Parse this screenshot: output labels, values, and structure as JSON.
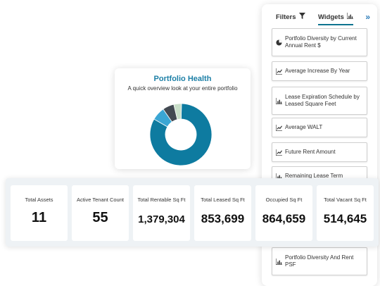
{
  "panel": {
    "tabs": {
      "filters": "Filters",
      "widgets": "Widgets"
    },
    "expand_icon": "chevron-double-right-icon",
    "widgets": [
      {
        "label": "Portfolio Diversity by Current Annual Rent $",
        "icon": "pie-chart-icon"
      },
      {
        "label": "Average Increase By Year",
        "icon": "line-chart-icon"
      },
      {
        "label": "Lease Expiration Schedule by Leased Square Feet",
        "icon": "bar-chart-icon"
      },
      {
        "label": "Average WALT",
        "icon": "line-chart-icon"
      },
      {
        "label": "Future Rent Amount",
        "icon": "line-chart-icon"
      },
      {
        "label": "Remaining Lease Term",
        "icon": "bar-chart-icon"
      },
      {
        "label": "Portfolio Diversity And Rent PSF",
        "icon": "bar-chart-icon"
      }
    ]
  },
  "health": {
    "title": "Portfolio Health",
    "subtitle": "A quick overview look at your entire portfolio",
    "donut_segments": [
      {
        "color": "#0e7ba0",
        "fraction": 0.83
      },
      {
        "color": "#3aa6d4",
        "fraction": 0.07
      },
      {
        "color": "#434a52",
        "fraction": 0.06
      },
      {
        "color": "#c9dfc9",
        "fraction": 0.04
      }
    ]
  },
  "stats": [
    {
      "label": "Total Assets",
      "value": "11"
    },
    {
      "label": "Active Tenant Count",
      "value": "55"
    },
    {
      "label": "Total Rentable Sq Ft",
      "value": "1,379,304"
    },
    {
      "label": "Total Leased Sq Ft",
      "value": "853,699"
    },
    {
      "label": "Occupied Sq Ft",
      "value": "864,659"
    },
    {
      "label": "Total Vacant Sq Ft",
      "value": "514,645"
    }
  ]
}
